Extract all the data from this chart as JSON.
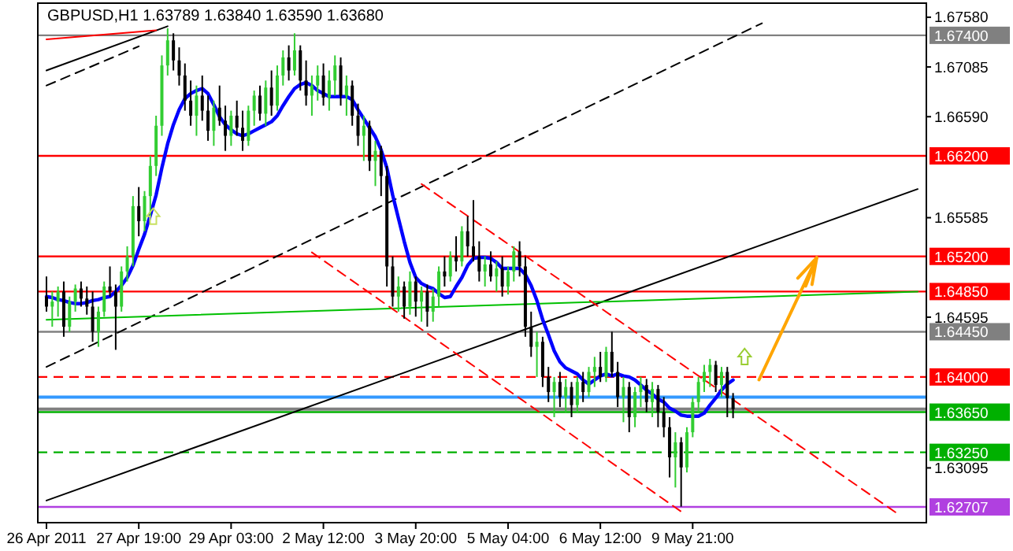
{
  "chart_data": {
    "type": "candlestick",
    "title": "GBPUSD,H1  1.63789 1.63840 1.63590 1.63680",
    "categories": [
      "26 Apr 2011",
      null,
      null,
      null,
      null,
      null,
      null,
      null,
      null,
      null,
      null,
      null,
      null,
      null,
      null,
      null,
      "27 Apr 19:00",
      null,
      null,
      null,
      null,
      null,
      null,
      null,
      null,
      null,
      null,
      null,
      null,
      null,
      null,
      null,
      "29 Apr 03:00",
      null,
      null,
      null,
      null,
      null,
      null,
      null,
      null,
      null,
      null,
      null,
      null,
      null,
      null,
      null,
      "2 May 12:00",
      null,
      null,
      null,
      null,
      null,
      null,
      null,
      null,
      null,
      null,
      null,
      null,
      null,
      null,
      null,
      "3 May 20:00",
      null,
      null,
      null,
      null,
      null,
      null,
      null,
      null,
      null,
      null,
      null,
      null,
      null,
      null,
      null,
      "5 May 04:00",
      null,
      null,
      null,
      null,
      null,
      null,
      null,
      null,
      null,
      null,
      null,
      null,
      null,
      null,
      null,
      "6 May 12:00",
      null,
      null,
      null,
      null,
      null,
      null,
      null,
      null,
      null,
      null,
      null,
      null,
      null,
      null,
      null,
      "9 May 21:00",
      null,
      null,
      null,
      null,
      null,
      null,
      null,
      null,
      null,
      null,
      null,
      null,
      null,
      null,
      null,
      null,
      null,
      null,
      null,
      null,
      null,
      null,
      null,
      null,
      null,
      null,
      null,
      null,
      null,
      null,
      null,
      null,
      null,
      null,
      null,
      null,
      null,
      null,
      null
    ],
    "ohlc": [
      [
        1.648,
        1.65,
        1.6465,
        1.647
      ],
      [
        1.647,
        1.6485,
        1.645,
        1.6475
      ],
      [
        1.6475,
        1.649,
        1.646,
        1.6485
      ],
      [
        1.6485,
        1.6495,
        1.644,
        1.645
      ],
      [
        1.645,
        1.648,
        1.6445,
        1.6475
      ],
      [
        1.6475,
        1.6492,
        1.6465,
        1.6488
      ],
      [
        1.6488,
        1.6495,
        1.647,
        1.6478
      ],
      [
        1.6478,
        1.649,
        1.6462,
        1.647
      ],
      [
        1.647,
        1.6485,
        1.6435,
        1.6445
      ],
      [
        1.6445,
        1.647,
        1.643,
        1.6465
      ],
      [
        1.6465,
        1.6495,
        1.646,
        1.649
      ],
      [
        1.649,
        1.651,
        1.648,
        1.6485
      ],
      [
        1.6485,
        1.6492,
        1.6427,
        1.647
      ],
      [
        1.647,
        1.651,
        1.6465,
        1.6505
      ],
      [
        1.6505,
        1.653,
        1.6495,
        1.652
      ],
      [
        1.652,
        1.658,
        1.651,
        1.657
      ],
      [
        1.657,
        1.6589,
        1.654,
        1.6555
      ],
      [
        1.6555,
        1.6585,
        1.6545,
        1.658
      ],
      [
        1.658,
        1.662,
        1.656,
        1.661
      ],
      [
        1.661,
        1.666,
        1.66,
        1.665
      ],
      [
        1.665,
        1.672,
        1.664,
        1.671
      ],
      [
        1.671,
        1.6747,
        1.67,
        1.6735
      ],
      [
        1.6735,
        1.6742,
        1.6705,
        1.6715
      ],
      [
        1.6715,
        1.6728,
        1.669,
        1.67
      ],
      [
        1.67,
        1.6712,
        1.6665,
        1.6675
      ],
      [
        1.6675,
        1.6695,
        1.665,
        1.666
      ],
      [
        1.666,
        1.669,
        1.664,
        1.668
      ],
      [
        1.668,
        1.67,
        1.6655,
        1.6665
      ],
      [
        1.6665,
        1.668,
        1.6635,
        1.6645
      ],
      [
        1.6645,
        1.6675,
        1.663,
        1.6668
      ],
      [
        1.6668,
        1.669,
        1.665,
        1.6655
      ],
      [
        1.6655,
        1.667,
        1.6625,
        1.664
      ],
      [
        1.664,
        1.6665,
        1.663,
        1.666
      ],
      [
        1.666,
        1.6675,
        1.664,
        1.6648
      ],
      [
        1.6648,
        1.6665,
        1.6625,
        1.6635
      ],
      [
        1.6635,
        1.667,
        1.663,
        1.6665
      ],
      [
        1.6665,
        1.6685,
        1.665,
        1.668
      ],
      [
        1.668,
        1.669,
        1.6655,
        1.6662
      ],
      [
        1.6662,
        1.6695,
        1.665,
        1.6688
      ],
      [
        1.6688,
        1.6705,
        1.666,
        1.667
      ],
      [
        1.667,
        1.671,
        1.6665,
        1.67
      ],
      [
        1.67,
        1.6725,
        1.669,
        1.6718
      ],
      [
        1.6718,
        1.673,
        1.6695,
        1.6705
      ],
      [
        1.6705,
        1.6742,
        1.67,
        1.6725
      ],
      [
        1.6725,
        1.673,
        1.6685,
        1.6695
      ],
      [
        1.6695,
        1.6715,
        1.667,
        1.668
      ],
      [
        1.668,
        1.67,
        1.666,
        1.669
      ],
      [
        1.669,
        1.671,
        1.6675,
        1.67
      ],
      [
        1.67,
        1.6712,
        1.667,
        1.6678
      ],
      [
        1.6678,
        1.6705,
        1.6665,
        1.6695
      ],
      [
        1.6695,
        1.672,
        1.668,
        1.671
      ],
      [
        1.671,
        1.6718,
        1.667,
        1.668
      ],
      [
        1.668,
        1.67,
        1.666,
        1.669
      ],
      [
        1.669,
        1.6695,
        1.665,
        1.666
      ],
      [
        1.666,
        1.6672,
        1.663,
        1.664
      ],
      [
        1.664,
        1.666,
        1.6615,
        1.665
      ],
      [
        1.665,
        1.6655,
        1.6605,
        1.6615
      ],
      [
        1.6615,
        1.6635,
        1.659,
        1.6625
      ],
      [
        1.6625,
        1.663,
        1.658,
        1.66
      ],
      [
        1.66,
        1.661,
        1.649,
        1.651
      ],
      [
        1.651,
        1.652,
        1.647,
        1.648
      ],
      [
        1.648,
        1.65,
        1.6465,
        1.649
      ],
      [
        1.649,
        1.6495,
        1.6458,
        1.647
      ],
      [
        1.647,
        1.6505,
        1.6462,
        1.6495
      ],
      [
        1.6495,
        1.65,
        1.646,
        1.6475
      ],
      [
        1.6475,
        1.649,
        1.6455,
        1.6485
      ],
      [
        1.6485,
        1.6492,
        1.645,
        1.6465
      ],
      [
        1.6465,
        1.6488,
        1.6455,
        1.648
      ],
      [
        1.648,
        1.651,
        1.647,
        1.6505
      ],
      [
        1.6505,
        1.652,
        1.649,
        1.65
      ],
      [
        1.65,
        1.6525,
        1.6495,
        1.652
      ],
      [
        1.652,
        1.654,
        1.6505,
        1.6515
      ],
      [
        1.6515,
        1.655,
        1.651,
        1.6545
      ],
      [
        1.6545,
        1.656,
        1.652,
        1.653
      ],
      [
        1.653,
        1.6576,
        1.6515,
        1.652
      ],
      [
        1.652,
        1.6535,
        1.6495,
        1.6505
      ],
      [
        1.6505,
        1.652,
        1.649,
        1.6512
      ],
      [
        1.6512,
        1.6525,
        1.6495,
        1.65
      ],
      [
        1.65,
        1.6515,
        1.6485,
        1.6508
      ],
      [
        1.6508,
        1.652,
        1.648,
        1.649
      ],
      [
        1.649,
        1.651,
        1.6482,
        1.6505
      ],
      [
        1.6505,
        1.653,
        1.6495,
        1.6525
      ],
      [
        1.6525,
        1.6535,
        1.65,
        1.651
      ],
      [
        1.651,
        1.652,
        1.644,
        1.645
      ],
      [
        1.645,
        1.6465,
        1.642,
        1.643
      ],
      [
        1.643,
        1.6445,
        1.64,
        1.6435
      ],
      [
        1.6435,
        1.644,
        1.639,
        1.64
      ],
      [
        1.64,
        1.641,
        1.6375,
        1.6385
      ],
      [
        1.6385,
        1.64,
        1.636,
        1.6395
      ],
      [
        1.6395,
        1.6405,
        1.637,
        1.638
      ],
      [
        1.638,
        1.6398,
        1.6365,
        1.639
      ],
      [
        1.639,
        1.6395,
        1.636,
        1.6372
      ],
      [
        1.6372,
        1.64,
        1.6365,
        1.6395
      ],
      [
        1.6395,
        1.6405,
        1.6375,
        1.6385
      ],
      [
        1.6385,
        1.641,
        1.638,
        1.6405
      ],
      [
        1.6405,
        1.642,
        1.639,
        1.641
      ],
      [
        1.641,
        1.6425,
        1.6395,
        1.64
      ],
      [
        1.64,
        1.643,
        1.6395,
        1.6425
      ],
      [
        1.6425,
        1.6445,
        1.64,
        1.6405
      ],
      [
        1.6405,
        1.6415,
        1.637,
        1.638
      ],
      [
        1.638,
        1.64,
        1.6355,
        1.639
      ],
      [
        1.639,
        1.6395,
        1.6345,
        1.636
      ],
      [
        1.636,
        1.639,
        1.635,
        1.6385
      ],
      [
        1.6385,
        1.64,
        1.637,
        1.6392
      ],
      [
        1.6392,
        1.6398,
        1.6365,
        1.6375
      ],
      [
        1.6375,
        1.6395,
        1.636,
        1.6388
      ],
      [
        1.6388,
        1.6392,
        1.635,
        1.6365
      ],
      [
        1.6365,
        1.638,
        1.634,
        1.635
      ],
      [
        1.635,
        1.636,
        1.63,
        1.632
      ],
      [
        1.632,
        1.6345,
        1.629,
        1.6335
      ],
      [
        1.6335,
        1.634,
        1.6271,
        1.631
      ],
      [
        1.631,
        1.635,
        1.6305,
        1.6345
      ],
      [
        1.6345,
        1.638,
        1.634,
        1.6375
      ],
      [
        1.6375,
        1.64,
        1.6365,
        1.6395
      ],
      [
        1.6395,
        1.6412,
        1.6385,
        1.6405
      ],
      [
        1.6405,
        1.6418,
        1.639,
        1.6412
      ],
      [
        1.6412,
        1.6416,
        1.6385,
        1.6392
      ],
      [
        1.6392,
        1.641,
        1.638,
        1.6405
      ],
      [
        1.6405,
        1.641,
        1.636,
        1.6379
      ],
      [
        1.63789,
        1.6384,
        1.6359,
        1.6368
      ],
      null,
      null,
      null,
      null,
      null,
      null,
      null,
      null,
      null,
      null,
      null,
      null,
      null,
      null,
      null,
      null,
      null,
      null,
      null,
      null,
      null,
      null,
      null,
      null,
      null,
      null,
      null,
      null,
      null,
      null,
      null,
      null
    ],
    "colors": [
      "#000000",
      "#32cd32",
      "#32cd32",
      "#000000",
      "#32cd32",
      "#32cd32",
      "#000000",
      "#000000",
      "#000000",
      "#32cd32",
      "#32cd32",
      "#000000",
      "#000000",
      "#32cd32",
      "#32cd32",
      "#32cd32",
      "#000000",
      "#32cd32",
      "#32cd32",
      "#32cd32",
      "#32cd32",
      "#32cd32",
      "#000000",
      "#000000",
      "#000000",
      "#000000",
      "#32cd32",
      "#000000",
      "#000000",
      "#32cd32",
      "#000000",
      "#000000",
      "#32cd32",
      "#000000",
      "#000000",
      "#32cd32",
      "#32cd32",
      "#000000",
      "#32cd32",
      "#000000",
      "#32cd32",
      "#32cd32",
      "#000000",
      "#32cd32",
      "#000000",
      "#000000",
      "#32cd32",
      "#32cd32",
      "#000000",
      "#32cd32",
      "#32cd32",
      "#000000",
      "#32cd32",
      "#000000",
      "#000000",
      "#32cd32",
      "#000000",
      "#32cd32",
      "#000000",
      "#000000",
      "#000000",
      "#32cd32",
      "#000000",
      "#32cd32",
      "#000000",
      "#32cd32",
      "#000000",
      "#32cd32",
      "#32cd32",
      "#000000",
      "#32cd32",
      "#000000",
      "#32cd32",
      "#000000",
      "#000000",
      "#000000",
      "#32cd32",
      "#000000",
      "#32cd32",
      "#000000",
      "#32cd32",
      "#32cd32",
      "#000000",
      "#000000",
      "#000000",
      "#32cd32",
      "#000000",
      "#000000",
      "#32cd32",
      "#000000",
      "#32cd32",
      "#000000",
      "#32cd32",
      "#000000",
      "#32cd32",
      "#32cd32",
      "#000000",
      "#32cd32",
      "#000000",
      "#000000",
      "#32cd32",
      "#000000",
      "#32cd32",
      "#32cd32",
      "#000000",
      "#32cd32",
      "#000000",
      "#000000",
      "#000000",
      "#32cd32",
      "#000000",
      "#32cd32",
      "#32cd32",
      "#32cd32",
      "#32cd32",
      "#32cd32",
      "#000000",
      "#32cd32",
      "#000000",
      "#000000",
      null,
      null,
      null,
      null,
      null,
      null,
      null,
      null,
      null,
      null,
      null,
      null,
      null,
      null,
      null,
      null,
      null,
      null,
      null,
      null,
      null,
      null,
      null,
      null,
      null,
      null,
      null,
      null,
      null,
      null,
      null,
      null
    ],
    "series": [
      {
        "type": "line",
        "color": "#0000ff",
        "values": [
          1.648,
          1.6479,
          1.6477,
          1.6476,
          1.6474,
          1.6473,
          1.6473,
          1.6474,
          1.6476,
          1.6477,
          1.6479,
          1.648,
          1.6485,
          1.6491,
          1.6499,
          1.6511,
          1.6527,
          1.6542,
          1.6561,
          1.6581,
          1.6608,
          1.6632,
          1.6651,
          1.6666,
          1.6677,
          1.6682,
          1.6685,
          1.6687,
          1.6682,
          1.6671,
          1.6659,
          1.6651,
          1.6646,
          1.6642,
          1.664,
          1.6642,
          1.6645,
          1.6648,
          1.6651,
          1.6654,
          1.666,
          1.667,
          1.6679,
          1.6687,
          1.6691,
          1.6693,
          1.669,
          1.6685,
          1.6682,
          1.6679,
          1.6679,
          1.6679,
          1.6679,
          1.6676,
          1.6666,
          1.6657,
          1.6648,
          1.6639,
          1.6626,
          1.6608,
          1.6581,
          1.6558,
          1.6535,
          1.6514,
          1.6499,
          1.6493,
          1.649,
          1.6488,
          1.6483,
          1.6479,
          1.648,
          1.649,
          1.6499,
          1.6511,
          1.6518,
          1.6519,
          1.6519,
          1.6518,
          1.6514,
          1.6508,
          1.6508,
          1.6508,
          1.6508,
          1.6502,
          1.6491,
          1.6476,
          1.6457,
          1.6442,
          1.6426,
          1.6415,
          1.6409,
          1.6406,
          1.6403,
          1.6397,
          1.6393,
          1.6397,
          1.6401,
          1.6403,
          1.6401,
          1.6403,
          1.6401,
          1.64,
          1.6397,
          1.6392,
          1.6387,
          1.6383,
          1.6378,
          1.6375,
          1.6369,
          1.6366,
          1.6362,
          1.6361,
          1.6361,
          1.6361,
          1.6364,
          1.6372,
          1.6379,
          1.6387,
          1.6393,
          1.6397,
          null,
          null,
          null,
          null,
          null,
          null,
          null,
          null,
          null,
          null,
          null,
          null,
          null,
          null,
          null,
          null,
          null,
          null,
          null,
          null,
          null,
          null,
          null,
          null,
          null,
          null,
          null,
          null,
          null,
          null,
          null,
          null
        ]
      },
      {
        "type": "line",
        "color": "#000000",
        "values": [
          1.6277,
          null,
          null,
          null,
          null,
          null,
          null,
          null,
          null,
          null,
          null,
          null,
          null,
          null,
          null,
          null,
          null,
          null,
          null,
          null,
          null,
          null,
          null,
          null,
          null,
          null,
          null,
          null,
          null,
          null,
          null,
          null,
          null,
          null,
          null,
          null,
          null,
          null,
          null,
          null,
          null,
          null,
          null,
          null,
          null,
          null,
          null,
          null,
          null,
          null,
          null,
          null,
          null,
          null,
          null,
          null,
          null,
          null,
          null,
          null,
          null,
          null,
          null,
          null,
          null,
          null,
          null,
          null,
          null,
          null,
          null,
          null,
          null,
          null,
          null,
          null,
          null,
          null,
          null,
          null,
          null,
          null,
          null,
          null,
          null,
          null,
          null,
          null,
          null,
          null,
          null,
          null,
          null,
          null,
          null,
          null,
          null,
          null,
          null,
          null,
          null,
          null,
          null,
          null,
          null,
          null,
          null,
          null,
          null,
          null,
          null,
          null,
          null,
          null,
          null,
          null,
          null,
          null,
          null,
          null,
          null,
          null,
          null,
          null,
          null,
          null,
          null,
          null,
          null,
          null,
          null,
          null,
          null,
          null,
          null,
          null,
          null,
          null,
          null,
          null,
          null,
          null,
          null,
          null,
          null,
          null,
          null,
          null,
          null,
          null,
          null,
          1.6587
        ]
      },
      {
        "type": "line",
        "color": "#000000",
        "line_style": "dashed",
        "values": [
          1.641,
          null,
          null,
          null,
          null,
          null,
          null,
          null,
          null,
          null,
          null,
          null,
          null,
          null,
          null,
          null,
          null,
          null,
          null,
          null,
          null,
          null,
          null,
          null,
          null,
          null,
          null,
          null,
          null,
          null,
          null,
          null,
          null,
          null,
          null,
          null,
          null,
          null,
          null,
          null,
          null,
          null,
          null,
          null,
          null,
          null,
          null,
          null,
          null,
          null,
          null,
          null,
          null,
          null,
          null,
          null,
          null,
          null,
          null,
          null,
          null,
          null,
          null,
          null,
          null,
          null,
          null,
          null,
          null,
          null,
          null,
          null,
          null,
          null,
          null,
          null,
          null,
          null,
          null,
          null,
          null,
          null,
          null,
          null,
          null,
          null,
          null,
          null,
          null,
          null,
          null,
          null,
          null,
          null,
          null,
          null,
          null,
          null,
          null,
          null,
          null,
          null,
          null,
          null,
          null,
          null,
          null,
          null,
          null,
          null,
          null,
          null,
          null,
          null,
          null,
          null,
          null,
          null,
          null,
          null,
          null,
          null,
          null,
          null,
          1.6752,
          null,
          null,
          null,
          null,
          null,
          null,
          null,
          null,
          null,
          null,
          null,
          null,
          null,
          null,
          null,
          null,
          null,
          null,
          null,
          null,
          null,
          null,
          null,
          null,
          null,
          null,
          null
        ]
      },
      {
        "type": "line",
        "color": "#000000",
        "values": [
          1.6705,
          null,
          null,
          null,
          null,
          null,
          null,
          null,
          null,
          null,
          null,
          null,
          null,
          null,
          null,
          null,
          null,
          null,
          null,
          null,
          null,
          1.6749,
          null,
          null,
          null,
          null,
          null,
          null,
          null,
          null,
          null,
          null,
          null,
          null,
          null,
          null,
          null,
          null,
          null,
          null,
          null,
          null,
          null,
          null,
          null,
          null,
          null,
          null,
          null,
          null,
          null,
          null,
          null,
          null,
          null,
          null,
          null,
          null,
          null,
          null,
          null,
          null,
          null,
          null,
          null,
          null,
          null,
          null,
          null,
          null,
          null,
          null,
          null,
          null,
          null,
          null,
          null,
          null,
          null,
          null,
          null,
          null,
          null,
          null,
          null,
          null,
          null,
          null,
          null,
          null,
          null,
          null,
          null,
          null,
          null,
          null,
          null,
          null,
          null,
          null,
          null,
          null,
          null,
          null,
          null,
          null,
          null,
          null,
          null,
          null,
          null,
          null,
          null,
          null,
          null,
          null,
          null,
          null,
          null,
          null,
          null,
          null,
          null,
          null,
          null,
          null,
          null,
          null,
          null,
          null,
          null,
          null,
          null,
          null,
          null,
          null,
          null,
          null,
          null,
          null,
          null,
          null,
          null,
          null,
          null,
          null,
          null,
          null,
          null,
          null,
          null,
          null
        ]
      },
      {
        "type": "line",
        "color": "#000000",
        "line_style": "dashed",
        "values": [
          1.669,
          null,
          null,
          null,
          null,
          null,
          null,
          null,
          null,
          null,
          null,
          null,
          null,
          null,
          null,
          null,
          1.6729,
          null,
          null,
          null,
          null,
          null,
          null,
          null,
          null,
          null,
          null,
          null,
          null,
          null,
          null,
          null,
          null,
          null,
          null,
          null,
          null,
          null,
          null,
          null,
          null,
          null,
          null,
          null,
          null,
          null,
          null,
          null,
          null,
          null,
          null,
          null,
          null,
          null,
          null,
          null,
          null,
          null,
          null,
          null,
          null,
          null,
          null,
          null,
          null,
          null,
          null,
          null,
          null,
          null,
          null,
          null,
          null,
          null,
          null,
          null,
          null,
          null,
          null,
          null,
          null,
          null,
          null,
          null,
          null,
          null,
          null,
          null,
          null,
          null,
          null,
          null,
          null,
          null,
          null,
          null,
          null,
          null,
          null,
          null,
          null,
          null,
          null,
          null,
          null,
          null,
          null,
          null,
          null,
          null,
          null,
          null,
          null,
          null,
          null,
          null,
          null,
          null,
          null,
          null,
          null,
          null,
          null,
          null,
          null,
          null,
          null,
          null,
          null,
          null,
          null,
          null,
          null,
          null,
          null,
          null,
          null,
          null,
          null,
          null,
          null,
          null,
          null,
          null,
          null,
          null,
          null,
          null,
          null,
          null,
          null,
          null
        ]
      },
      {
        "type": "line",
        "color": "#ff0000",
        "values": [
          1.6736,
          null,
          null,
          null,
          null,
          null,
          null,
          null,
          null,
          null,
          null,
          null,
          null,
          null,
          null,
          null,
          null,
          null,
          null,
          1.6745,
          null,
          null,
          null,
          null,
          null,
          null,
          null,
          null,
          null,
          null,
          null,
          null,
          null,
          null,
          null,
          null,
          null,
          null,
          null,
          null,
          null,
          null,
          null,
          null,
          null,
          null,
          null,
          null,
          null,
          null,
          null,
          null,
          null,
          null,
          null,
          null,
          null,
          null,
          null,
          null,
          null,
          null,
          null,
          null,
          null,
          null,
          null,
          null,
          null,
          null,
          null,
          null,
          null,
          null,
          null,
          null,
          null,
          null,
          null,
          null,
          null,
          null,
          null,
          null,
          null,
          null,
          null,
          null,
          null,
          null,
          null,
          null,
          null,
          null,
          null,
          null,
          null,
          null,
          null,
          null,
          null,
          null,
          null,
          null,
          null,
          null,
          null,
          null,
          null,
          null,
          null,
          null,
          null,
          null,
          null,
          null,
          null,
          null,
          null,
          null,
          null,
          null,
          null,
          null,
          null,
          null,
          null,
          null,
          null,
          null,
          null,
          null,
          null,
          null,
          null,
          null,
          null,
          null,
          null,
          null,
          null,
          null,
          null,
          null,
          null,
          null,
          null,
          null,
          null,
          null,
          null,
          null
        ]
      },
      {
        "type": "line",
        "color": "#00c000",
        "values": [
          1.6457,
          null,
          null,
          null,
          null,
          null,
          null,
          null,
          null,
          null,
          null,
          null,
          null,
          null,
          null,
          null,
          null,
          null,
          null,
          null,
          null,
          null,
          null,
          null,
          null,
          null,
          null,
          null,
          null,
          null,
          null,
          null,
          null,
          null,
          null,
          null,
          null,
          null,
          null,
          null,
          null,
          null,
          null,
          null,
          null,
          null,
          null,
          null,
          null,
          null,
          null,
          null,
          null,
          null,
          null,
          null,
          null,
          null,
          null,
          null,
          null,
          null,
          null,
          null,
          null,
          null,
          null,
          null,
          null,
          null,
          null,
          null,
          null,
          null,
          null,
          null,
          null,
          null,
          null,
          null,
          null,
          null,
          null,
          null,
          null,
          null,
          null,
          null,
          null,
          null,
          null,
          null,
          null,
          null,
          null,
          null,
          null,
          null,
          null,
          null,
          null,
          null,
          null,
          null,
          null,
          null,
          null,
          null,
          null,
          null,
          null,
          null,
          null,
          null,
          null,
          null,
          null,
          null,
          null,
          null,
          null,
          null,
          null,
          null,
          null,
          null,
          null,
          null,
          null,
          null,
          null,
          null,
          null,
          null,
          null,
          null,
          null,
          null,
          null,
          null,
          null,
          null,
          null,
          null,
          null,
          null,
          null,
          null,
          null,
          null,
          null,
          1.6485
        ]
      },
      {
        "type": "line",
        "color": "#ff0000",
        "line_style": "dashed",
        "values": [
          null,
          null,
          null,
          null,
          null,
          null,
          null,
          null,
          null,
          null,
          null,
          null,
          null,
          null,
          null,
          null,
          null,
          null,
          null,
          null,
          null,
          null,
          null,
          null,
          null,
          null,
          null,
          null,
          null,
          null,
          null,
          null,
          null,
          null,
          null,
          null,
          null,
          null,
          null,
          null,
          null,
          null,
          null,
          null,
          null,
          null,
          null,
          null,
          null,
          null,
          null,
          null,
          null,
          null,
          null,
          null,
          null,
          null,
          null,
          null,
          null,
          null,
          null,
          null,
          null,
          1.6592,
          null,
          null,
          null,
          null,
          null,
          null,
          null,
          null,
          null,
          null,
          null,
          null,
          null,
          null,
          null,
          null,
          null,
          null,
          null,
          null,
          null,
          null,
          null,
          null,
          null,
          null,
          null,
          null,
          null,
          null,
          null,
          null,
          null,
          null,
          null,
          null,
          null,
          null,
          null,
          null,
          null,
          null,
          null,
          null,
          null,
          null,
          null,
          null,
          null,
          null,
          null,
          null,
          null,
          null,
          null,
          null,
          null,
          null,
          null,
          null,
          null,
          null,
          null,
          null,
          null,
          null,
          null,
          null,
          null,
          null,
          null,
          null,
          null,
          null,
          null,
          null,
          null,
          null,
          null,
          null,
          null,
          null,
          1.6262,
          null,
          null,
          null
        ]
      },
      {
        "type": "line",
        "color": "#ff0000",
        "line_style": "dashed",
        "values": [
          null,
          null,
          null,
          null,
          null,
          null,
          null,
          null,
          null,
          null,
          null,
          null,
          null,
          null,
          null,
          null,
          null,
          null,
          null,
          null,
          null,
          null,
          null,
          null,
          null,
          null,
          null,
          null,
          null,
          null,
          null,
          null,
          null,
          null,
          null,
          null,
          null,
          null,
          null,
          null,
          null,
          null,
          null,
          null,
          null,
          null,
          1.6524,
          null,
          null,
          null,
          null,
          null,
          null,
          null,
          null,
          null,
          null,
          null,
          null,
          null,
          null,
          null,
          null,
          null,
          null,
          null,
          null,
          null,
          null,
          null,
          null,
          null,
          null,
          null,
          null,
          null,
          null,
          null,
          null,
          null,
          null,
          null,
          null,
          null,
          null,
          null,
          null,
          null,
          null,
          null,
          null,
          null,
          null,
          null,
          null,
          null,
          null,
          null,
          null,
          null,
          null,
          null,
          null,
          null,
          null,
          null,
          null,
          null,
          null,
          null,
          1.6266,
          null,
          null,
          null,
          null,
          null,
          null,
          null,
          null,
          null,
          null,
          null,
          null,
          null,
          null,
          null,
          null,
          null,
          null,
          null,
          null,
          null,
          null,
          null,
          null,
          null,
          null,
          null,
          null,
          null,
          null,
          null,
          null,
          null,
          null,
          null,
          null,
          null,
          null,
          null,
          null,
          null
        ]
      }
    ],
    "ref_lines": [
      {
        "axis": "y",
        "value": 1.674,
        "label": "1.67400",
        "color": "#808080"
      },
      {
        "axis": "y",
        "value": 1.662,
        "label": "1.66200",
        "color": "#ff0000"
      },
      {
        "axis": "y",
        "value": 1.652,
        "label": "1.65200",
        "color": "#ff0000"
      },
      {
        "axis": "y",
        "value": 1.6485,
        "label": "1.64850",
        "color": "#ff0000"
      },
      {
        "axis": "y",
        "value": 1.6445,
        "label": "1.64450",
        "color": "#808080"
      },
      {
        "axis": "y",
        "value": 1.64,
        "label": "1.64000",
        "color": "#ff0000",
        "line_style": "dashed"
      },
      {
        "axis": "y",
        "value": 1.638,
        "color": "#3399ff"
      },
      {
        "axis": "y",
        "value": 1.6368,
        "color": "#808080"
      },
      {
        "axis": "y",
        "value": 1.6365,
        "label": "1.63650",
        "color": "#00b000"
      },
      {
        "axis": "y",
        "value": 1.6325,
        "label": "1.63250",
        "color": "#00b000",
        "line_style": "dashed"
      },
      {
        "axis": "y",
        "value": 1.62707,
        "label": "1.62707",
        "color": "#b040e0"
      }
    ],
    "ylim": [
      1.6255,
      1.6772
    ],
    "yticks": [
      {
        "value": 1.6758,
        "label": "1.67580"
      },
      {
        "value": 1.67085,
        "label": "1.67085"
      },
      {
        "value": 1.6659,
        "label": "1.66590"
      },
      {
        "value": 1.65585,
        "label": "1.65585"
      },
      {
        "value": 1.64595,
        "label": "1.64595"
      },
      {
        "value": 1.63095,
        "label": "1.63095"
      }
    ]
  }
}
